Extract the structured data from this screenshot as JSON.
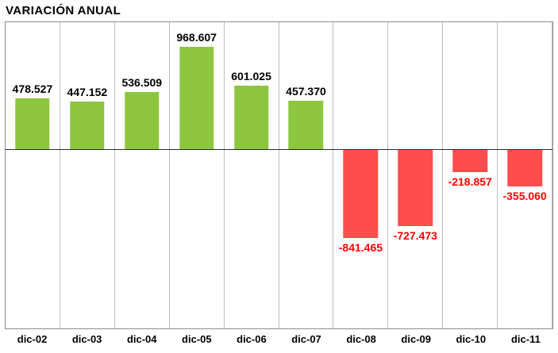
{
  "title": "VARIACIÓN ANUAL",
  "colors": {
    "positive_bar": "#8dc63f",
    "negative_bar": "#ff4d4d",
    "positive_label": "#000000",
    "negative_label": "#ff0000",
    "gridline": "#bdbdbd",
    "plot_border": "#8c8c8c",
    "zero_line": "#2b2b2b"
  },
  "chart_data": {
    "type": "bar",
    "title": "VARIACIÓN ANUAL",
    "categories": [
      "dic-02",
      "dic-03",
      "dic-04",
      "dic-05",
      "dic-06",
      "dic-07",
      "dic-08",
      "dic-09",
      "dic-10",
      "dic-11"
    ],
    "values": [
      478527,
      447152,
      536509,
      968607,
      601025,
      457370,
      -841465,
      -727473,
      -218857,
      -355060
    ],
    "value_labels": [
      "478.527",
      "447.152",
      "536.509",
      "968.607",
      "601.025",
      "457.370",
      "-841.465",
      "-727.473",
      "-218.857",
      "-355.060"
    ],
    "ylim": [
      -1700000,
      1200000
    ],
    "xlabel": "",
    "ylabel": "",
    "grid": "vertical-only",
    "legend": "none",
    "data_label_position": "outside-end"
  }
}
